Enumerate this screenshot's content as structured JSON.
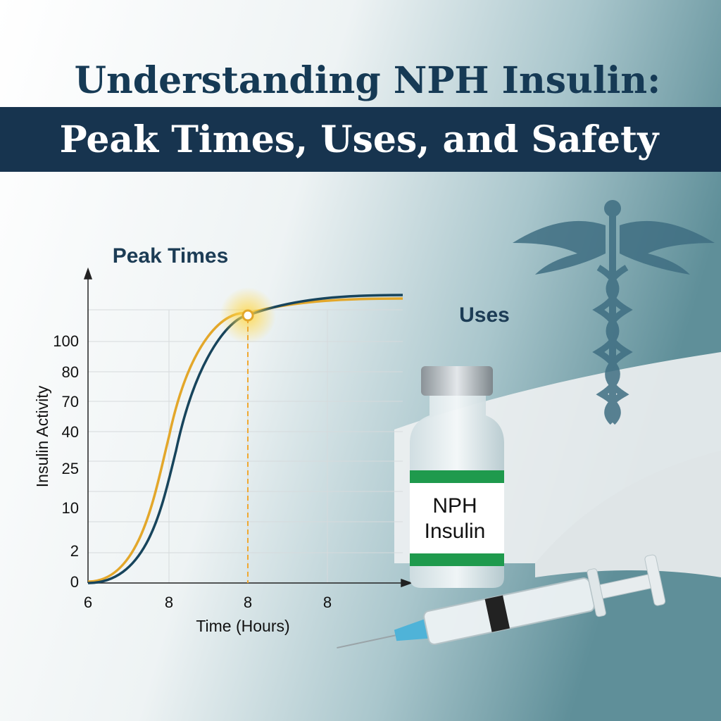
{
  "header": {
    "title": "Understanding NPH Insulin:",
    "banner": "Peak Times, Uses, and Safety"
  },
  "chart": {
    "label": "Peak Times",
    "y_axis_label": "Insulin Activity",
    "x_axis_label": "Time (Hours)",
    "y_tick_labels": [
      "100",
      "80",
      "70",
      "40",
      "25",
      "10",
      "2",
      "0"
    ],
    "x_tick_labels": [
      "6",
      "8",
      "8",
      "8"
    ]
  },
  "uses_label": "Uses",
  "vial": {
    "line1": "NPH",
    "line2": "Insulin"
  }
}
